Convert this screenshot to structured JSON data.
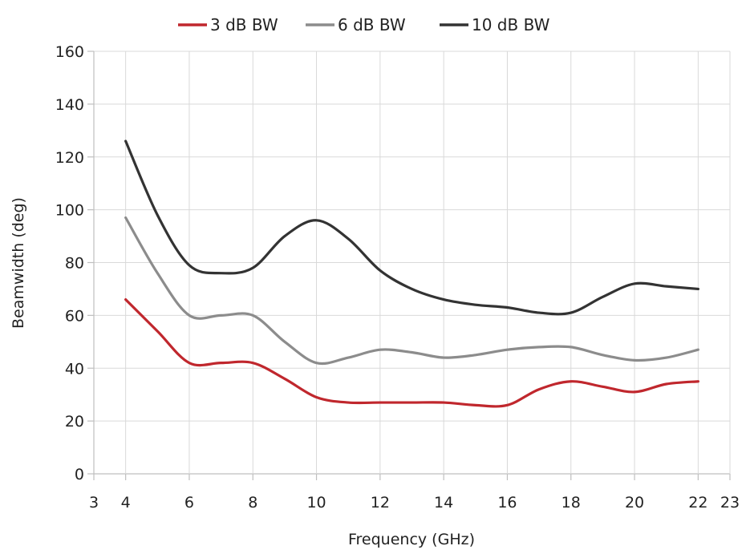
{
  "chart_data": {
    "type": "line",
    "title": "",
    "xlabel": "Frequency (GHz)",
    "ylabel": "Beamwidth (deg)",
    "xlim": [
      3,
      23
    ],
    "ylim": [
      0,
      160
    ],
    "xticks": [
      3,
      4,
      6,
      8,
      10,
      12,
      14,
      16,
      18,
      20,
      22,
      23
    ],
    "yticks": [
      0,
      20,
      40,
      60,
      80,
      100,
      120,
      140,
      160
    ],
    "grid": true,
    "legend_position": "top-center",
    "series": [
      {
        "name": "3 dB BW",
        "color": "#c0272d",
        "x": [
          4,
          5,
          6,
          7,
          8,
          9,
          10,
          11,
          12,
          13,
          14,
          15,
          16,
          17,
          18,
          19,
          20,
          21,
          22
        ],
        "values": [
          66,
          54,
          42,
          42,
          42,
          36,
          29,
          27,
          27,
          27,
          27,
          26,
          26,
          32,
          35,
          33,
          31,
          34,
          35
        ]
      },
      {
        "name": "6 dB BW",
        "color": "#8c8c8c",
        "x": [
          4,
          5,
          6,
          7,
          8,
          9,
          10,
          11,
          12,
          13,
          14,
          15,
          16,
          17,
          18,
          19,
          20,
          21,
          22
        ],
        "values": [
          97,
          76,
          60,
          60,
          60,
          50,
          42,
          44,
          47,
          46,
          44,
          45,
          47,
          48,
          48,
          45,
          43,
          44,
          47
        ]
      },
      {
        "name": "10 dB BW",
        "color": "#333333",
        "x": [
          4,
          5,
          6,
          7,
          8,
          9,
          10,
          11,
          12,
          13,
          14,
          15,
          16,
          17,
          18,
          19,
          20,
          21,
          22
        ],
        "values": [
          126,
          98,
          79,
          76,
          78,
          90,
          96,
          89,
          77,
          70,
          66,
          64,
          63,
          61,
          61,
          67,
          72,
          71,
          70
        ]
      }
    ]
  }
}
